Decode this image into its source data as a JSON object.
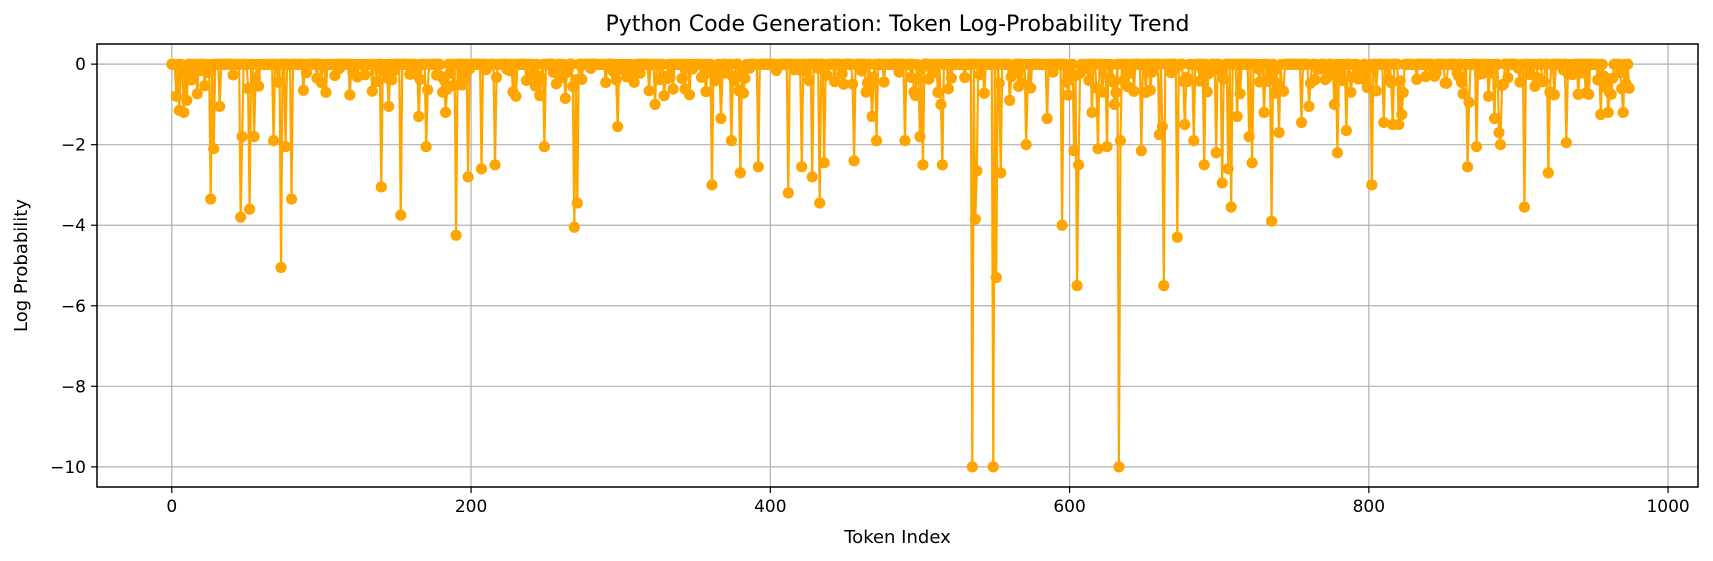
{
  "chart_data": {
    "type": "line",
    "title": "Python Code Generation: Token Log-Probability Trend",
    "xlabel": "Token Index",
    "ylabel": "Log Probability",
    "xlim": [
      -50,
      1020
    ],
    "ylim": [
      -10.5,
      0.5
    ],
    "xticks": [
      0,
      200,
      400,
      600,
      800,
      1000
    ],
    "yticks": [
      0,
      -2,
      -4,
      -6,
      -8,
      -10
    ],
    "grid": true,
    "marker": "circle",
    "color": "#FFA500",
    "notable_points": [
      {
        "x": 3,
        "y": -0.8
      },
      {
        "x": 5,
        "y": -1.15
      },
      {
        "x": 8,
        "y": -1.2
      },
      {
        "x": 10,
        "y": -0.9
      },
      {
        "x": 26,
        "y": -3.35
      },
      {
        "x": 28,
        "y": -2.1
      },
      {
        "x": 32,
        "y": -1.05
      },
      {
        "x": 46,
        "y": -3.8
      },
      {
        "x": 47,
        "y": -1.8
      },
      {
        "x": 52,
        "y": -3.6
      },
      {
        "x": 55,
        "y": -1.8
      },
      {
        "x": 68,
        "y": -1.9
      },
      {
        "x": 73,
        "y": -5.05
      },
      {
        "x": 76,
        "y": -2.05
      },
      {
        "x": 80,
        "y": -3.35
      },
      {
        "x": 103,
        "y": -0.7
      },
      {
        "x": 140,
        "y": -3.05
      },
      {
        "x": 145,
        "y": -1.05
      },
      {
        "x": 153,
        "y": -3.75
      },
      {
        "x": 165,
        "y": -1.3
      },
      {
        "x": 170,
        "y": -2.05
      },
      {
        "x": 183,
        "y": -1.2
      },
      {
        "x": 190,
        "y": -4.25
      },
      {
        "x": 198,
        "y": -2.8
      },
      {
        "x": 207,
        "y": -2.6
      },
      {
        "x": 216,
        "y": -2.5
      },
      {
        "x": 230,
        "y": -0.8
      },
      {
        "x": 249,
        "y": -2.05
      },
      {
        "x": 263,
        "y": -0.85
      },
      {
        "x": 269,
        "y": -4.05
      },
      {
        "x": 271,
        "y": -3.45
      },
      {
        "x": 298,
        "y": -1.55
      },
      {
        "x": 323,
        "y": -1.0
      },
      {
        "x": 361,
        "y": -3.0
      },
      {
        "x": 367,
        "y": -1.35
      },
      {
        "x": 374,
        "y": -1.9
      },
      {
        "x": 380,
        "y": -2.7
      },
      {
        "x": 392,
        "y": -2.55
      },
      {
        "x": 412,
        "y": -3.2
      },
      {
        "x": 421,
        "y": -2.55
      },
      {
        "x": 428,
        "y": -2.8
      },
      {
        "x": 433,
        "y": -3.45
      },
      {
        "x": 436,
        "y": -2.45
      },
      {
        "x": 456,
        "y": -2.4
      },
      {
        "x": 468,
        "y": -1.3
      },
      {
        "x": 471,
        "y": -1.9
      },
      {
        "x": 490,
        "y": -1.9
      },
      {
        "x": 500,
        "y": -1.8
      },
      {
        "x": 502,
        "y": -2.5
      },
      {
        "x": 514,
        "y": -1.0
      },
      {
        "x": 515,
        "y": -2.5
      },
      {
        "x": 535,
        "y": -10.0
      },
      {
        "x": 537,
        "y": -3.85
      },
      {
        "x": 538,
        "y": -2.65
      },
      {
        "x": 549,
        "y": -10.0
      },
      {
        "x": 551,
        "y": -5.3
      },
      {
        "x": 554,
        "y": -2.7
      },
      {
        "x": 560,
        "y": -0.9
      },
      {
        "x": 571,
        "y": -2.0
      },
      {
        "x": 585,
        "y": -1.35
      },
      {
        "x": 595,
        "y": -4.0
      },
      {
        "x": 603,
        "y": -2.15
      },
      {
        "x": 605,
        "y": -5.5
      },
      {
        "x": 606,
        "y": -2.5
      },
      {
        "x": 615,
        "y": -1.2
      },
      {
        "x": 619,
        "y": -2.1
      },
      {
        "x": 625,
        "y": -2.05
      },
      {
        "x": 630,
        "y": -1.0
      },
      {
        "x": 633,
        "y": -10.0
      },
      {
        "x": 634,
        "y": -1.9
      },
      {
        "x": 648,
        "y": -2.15
      },
      {
        "x": 660,
        "y": -1.75
      },
      {
        "x": 662,
        "y": -1.55
      },
      {
        "x": 663,
        "y": -5.5
      },
      {
        "x": 672,
        "y": -4.3
      },
      {
        "x": 677,
        "y": -1.5
      },
      {
        "x": 683,
        "y": -1.9
      },
      {
        "x": 690,
        "y": -2.5
      },
      {
        "x": 698,
        "y": -2.2
      },
      {
        "x": 702,
        "y": -2.95
      },
      {
        "x": 706,
        "y": -2.6
      },
      {
        "x": 708,
        "y": -3.55
      },
      {
        "x": 712,
        "y": -1.3
      },
      {
        "x": 720,
        "y": -1.8
      },
      {
        "x": 722,
        "y": -2.45
      },
      {
        "x": 730,
        "y": -1.2
      },
      {
        "x": 735,
        "y": -3.9
      },
      {
        "x": 740,
        "y": -1.7
      },
      {
        "x": 755,
        "y": -1.45
      },
      {
        "x": 760,
        "y": -1.05
      },
      {
        "x": 777,
        "y": -1.0
      },
      {
        "x": 779,
        "y": -2.2
      },
      {
        "x": 785,
        "y": -1.65
      },
      {
        "x": 788,
        "y": -0.7
      },
      {
        "x": 802,
        "y": -3.0
      },
      {
        "x": 810,
        "y": -1.45
      },
      {
        "x": 816,
        "y": -1.5
      },
      {
        "x": 820,
        "y": -1.5
      },
      {
        "x": 822,
        "y": -1.25
      },
      {
        "x": 860,
        "y": -0.3
      },
      {
        "x": 866,
        "y": -2.55
      },
      {
        "x": 867,
        "y": -0.95
      },
      {
        "x": 872,
        "y": -2.05
      },
      {
        "x": 880,
        "y": -0.8
      },
      {
        "x": 884,
        "y": -1.35
      },
      {
        "x": 887,
        "y": -1.7
      },
      {
        "x": 888,
        "y": -2.0
      },
      {
        "x": 890,
        "y": -0.5
      },
      {
        "x": 904,
        "y": -3.55
      },
      {
        "x": 911,
        "y": -0.55
      },
      {
        "x": 920,
        "y": -2.7
      },
      {
        "x": 932,
        "y": -1.95
      },
      {
        "x": 940,
        "y": -0.75
      },
      {
        "x": 947,
        "y": -0.75
      },
      {
        "x": 955,
        "y": -1.25
      },
      {
        "x": 960,
        "y": -1.2
      },
      {
        "x": 962,
        "y": -0.75
      },
      {
        "x": 970,
        "y": -1.2
      },
      {
        "x": 972,
        "y": -0.5
      },
      {
        "x": 974,
        "y": -0.6
      }
    ]
  }
}
